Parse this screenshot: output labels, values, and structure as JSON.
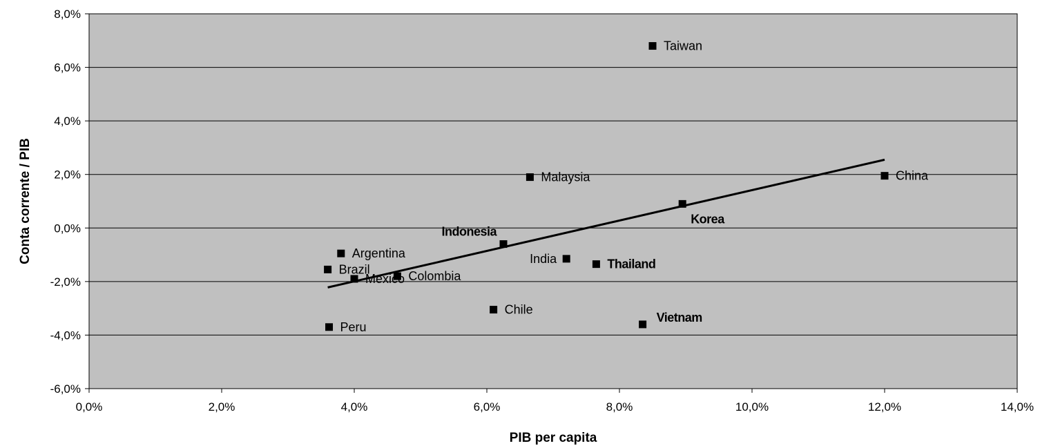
{
  "chart_data": {
    "type": "scatter",
    "xlabel": "PIB per capita",
    "ylabel": "Conta corrente / PIB",
    "xlim": [
      0,
      0.14
    ],
    "ylim": [
      -0.06,
      0.08
    ],
    "x_ticks": [
      0,
      0.02,
      0.04,
      0.06,
      0.08,
      0.1,
      0.12,
      0.14
    ],
    "y_ticks": [
      -0.06,
      -0.04,
      -0.02,
      0,
      0.02,
      0.04,
      0.06,
      0.08
    ],
    "x_tick_labels": [
      "0,0%",
      "2,0%",
      "4,0%",
      "6,0%",
      "8,0%",
      "10,0%",
      "12,0%",
      "14,0%"
    ],
    "y_tick_labels": [
      "-6,0%",
      "-4,0%",
      "-2,0%",
      "0,0%",
      "2,0%",
      "4,0%",
      "6,0%",
      "8,0%"
    ],
    "grid": "horizontal",
    "plot_background": "#c0c0c0",
    "marker_color": "#000000",
    "points": [
      {
        "label": "Taiwan",
        "x": 0.085,
        "y": 0.068,
        "label_side": "right",
        "bold": false
      },
      {
        "label": "Malaysia",
        "x": 0.0665,
        "y": 0.019,
        "label_side": "right",
        "bold": false
      },
      {
        "label": "China",
        "x": 0.12,
        "y": 0.0195,
        "label_side": "right",
        "bold": false
      },
      {
        "label": "Korea",
        "x": 0.0895,
        "y": 0.009,
        "label_side": "below-right",
        "bold": true
      },
      {
        "label": "Indonesia",
        "x": 0.0625,
        "y": -0.006,
        "label_side": "above-left",
        "bold": true
      },
      {
        "label": "Argentina",
        "x": 0.038,
        "y": -0.0095,
        "label_side": "right",
        "bold": false
      },
      {
        "label": "India",
        "x": 0.072,
        "y": -0.0115,
        "label_side": "left",
        "bold": false
      },
      {
        "label": "Thailand",
        "x": 0.0765,
        "y": -0.0135,
        "label_side": "right",
        "bold": true
      },
      {
        "label": "Brazil",
        "x": 0.036,
        "y": -0.0155,
        "label_side": "right",
        "bold": false
      },
      {
        "label": "Mexico",
        "x": 0.04,
        "y": -0.019,
        "label_side": "right",
        "bold": false
      },
      {
        "label": "Colombia",
        "x": 0.0465,
        "y": -0.018,
        "label_side": "right",
        "bold": false
      },
      {
        "label": "Chile",
        "x": 0.061,
        "y": -0.0305,
        "label_side": "right",
        "bold": false
      },
      {
        "label": "Vietnam",
        "x": 0.0835,
        "y": -0.036,
        "label_side": "above-right",
        "bold": true
      },
      {
        "label": "Peru",
        "x": 0.0362,
        "y": -0.037,
        "label_side": "right",
        "bold": false
      }
    ],
    "trendline": {
      "x": [
        0.036,
        0.12
      ],
      "y": [
        -0.0222,
        0.0255
      ]
    }
  }
}
